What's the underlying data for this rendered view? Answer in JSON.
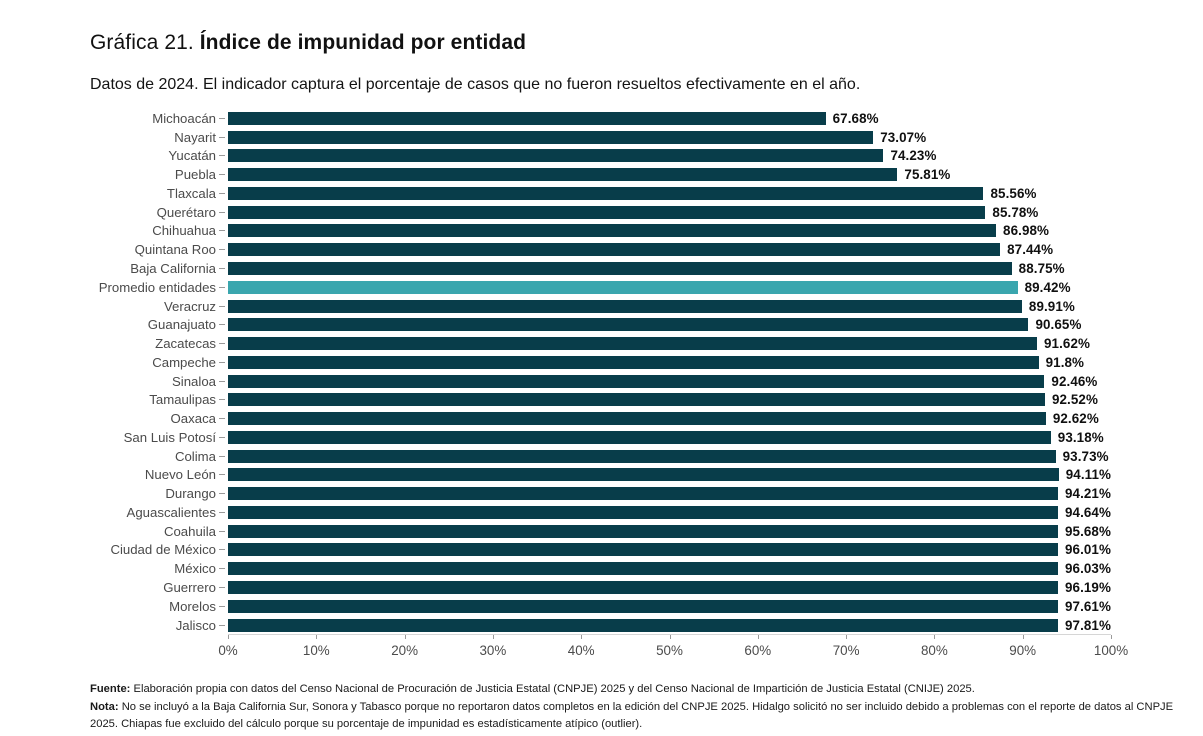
{
  "header": {
    "title_prefix": "Gráfica 21. ",
    "title_bold": "Índice de impunidad por entidad",
    "subtitle": "Datos de 2024. El indicador captura el porcentaje de casos que no fueron resueltos efectivamente en el año."
  },
  "chart_data": {
    "type": "bar",
    "orientation": "horizontal",
    "title": "Índice de impunidad por entidad",
    "xlabel": "",
    "ylabel": "",
    "xlim": [
      0,
      100
    ],
    "x_ticks": [
      "0%",
      "10%",
      "20%",
      "30%",
      "40%",
      "50%",
      "60%",
      "70%",
      "80%",
      "90%",
      "100%"
    ],
    "grid": false,
    "legend": false,
    "colors": {
      "bar": "#083d4a",
      "highlight": "#3aa6ae"
    },
    "highlight_category": "Promedio entidades",
    "items": [
      {
        "label": "Michoacán",
        "value": 67.68,
        "display": "67.68%",
        "highlight": false
      },
      {
        "label": "Nayarit",
        "value": 73.07,
        "display": "73.07%",
        "highlight": false
      },
      {
        "label": "Yucatán",
        "value": 74.23,
        "display": "74.23%",
        "highlight": false
      },
      {
        "label": "Puebla",
        "value": 75.81,
        "display": "75.81%",
        "highlight": false
      },
      {
        "label": "Tlaxcala",
        "value": 85.56,
        "display": "85.56%",
        "highlight": false
      },
      {
        "label": "Querétaro",
        "value": 85.78,
        "display": "85.78%",
        "highlight": false
      },
      {
        "label": "Chihuahua",
        "value": 86.98,
        "display": "86.98%",
        "highlight": false
      },
      {
        "label": "Quintana Roo",
        "value": 87.44,
        "display": "87.44%",
        "highlight": false
      },
      {
        "label": "Baja California",
        "value": 88.75,
        "display": "88.75%",
        "highlight": false
      },
      {
        "label": "Promedio entidades",
        "value": 89.42,
        "display": "89.42%",
        "highlight": true
      },
      {
        "label": "Veracruz",
        "value": 89.91,
        "display": "89.91%",
        "highlight": false
      },
      {
        "label": "Guanajuato",
        "value": 90.65,
        "display": "90.65%",
        "highlight": false
      },
      {
        "label": "Zacatecas",
        "value": 91.62,
        "display": "91.62%",
        "highlight": false
      },
      {
        "label": "Campeche",
        "value": 91.8,
        "display": "91.8%",
        "highlight": false
      },
      {
        "label": "Sinaloa",
        "value": 92.46,
        "display": "92.46%",
        "highlight": false
      },
      {
        "label": "Tamaulipas",
        "value": 92.52,
        "display": "92.52%",
        "highlight": false
      },
      {
        "label": "Oaxaca",
        "value": 92.62,
        "display": "92.62%",
        "highlight": false
      },
      {
        "label": "San Luis Potosí",
        "value": 93.18,
        "display": "93.18%",
        "highlight": false
      },
      {
        "label": "Colima",
        "value": 93.73,
        "display": "93.73%",
        "highlight": false
      },
      {
        "label": "Nuevo León",
        "value": 94.11,
        "display": "94.11%",
        "highlight": false
      },
      {
        "label": "Durango",
        "value": 94.21,
        "display": "94.21%",
        "highlight": false
      },
      {
        "label": "Aguascalientes",
        "value": 94.64,
        "display": "94.64%",
        "highlight": false
      },
      {
        "label": "Coahuila",
        "value": 95.68,
        "display": "95.68%",
        "highlight": false
      },
      {
        "label": "Ciudad de México",
        "value": 96.01,
        "display": "96.01%",
        "highlight": false
      },
      {
        "label": "México",
        "value": 96.03,
        "display": "96.03%",
        "highlight": false
      },
      {
        "label": "Guerrero",
        "value": 96.19,
        "display": "96.19%",
        "highlight": false
      },
      {
        "label": "Morelos",
        "value": 97.61,
        "display": "97.61%",
        "highlight": false
      },
      {
        "label": "Jalisco",
        "value": 97.81,
        "display": "97.81%",
        "highlight": false
      }
    ]
  },
  "footer": {
    "fuente_label": "Fuente:",
    "fuente_text": " Elaboración propia con datos del Censo Nacional de Procuración de Justicia Estatal (CNPJE) 2025 y del Censo Nacional de Impartición de Justicia Estatal (CNIJE) 2025.",
    "nota_label": "Nota:",
    "nota_text": " No se incluyó a la Baja California Sur,  Sonora y Tabasco porque no reportaron datos completos en la edición del CNPJE 2025. Hidalgo solicitó no ser incluido debido a problemas con el reporte de datos al CNPJE 2025. Chiapas fue excluido del cálculo porque su porcentaje de impunidad es estadísticamente atípico (outlier)."
  }
}
